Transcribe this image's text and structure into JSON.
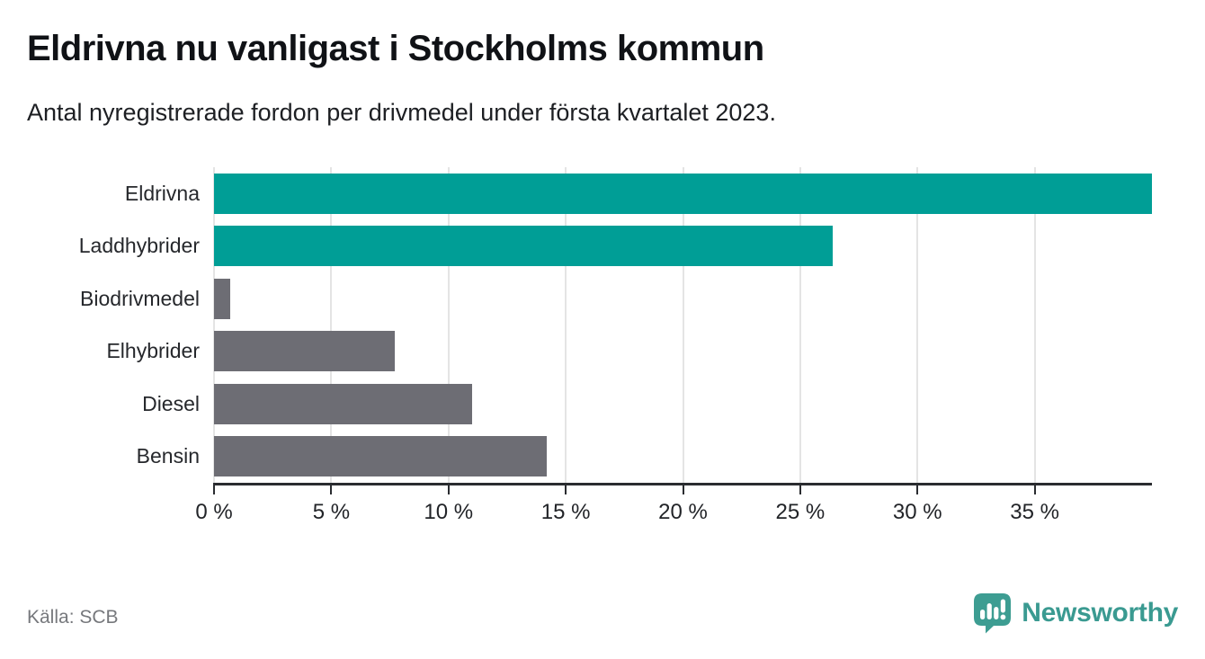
{
  "header": {
    "title": "Eldrivna nu vanligast i Stockholms kommun",
    "subtitle": "Antal nyregistrerade fordon per drivmedel under första kvartalet 2023."
  },
  "chart_data": {
    "type": "bar",
    "orientation": "horizontal",
    "title": "Eldrivna nu vanligast i Stockholms kommun",
    "subtitle": "Antal nyregistrerade fordon per drivmedel under första kvartalet 2023.",
    "categories": [
      "Eldrivna",
      "Laddhybrider",
      "Biodrivmedel",
      "Elhybrider",
      "Diesel",
      "Bensin"
    ],
    "values": [
      40.0,
      26.4,
      0.7,
      7.7,
      11.0,
      14.2
    ],
    "unit": "%",
    "bar_colors": [
      "#009e96",
      "#009e96",
      "#6d6d74",
      "#6d6d74",
      "#6d6d74",
      "#6d6d74"
    ],
    "xlim": [
      0,
      40
    ],
    "x_ticks": [
      0,
      5,
      10,
      15,
      20,
      25,
      30,
      35
    ],
    "x_tick_labels": [
      "0 %",
      "5 %",
      "10 %",
      "15 %",
      "20 %",
      "25 %",
      "30 %",
      "35 %"
    ],
    "grid": "vertical-only",
    "legend": "none",
    "ylabel": "",
    "xlabel": ""
  },
  "footer": {
    "source": "Källa: SCB",
    "brand": "Newsworthy"
  },
  "colors": {
    "accent_teal": "#009e96",
    "neutral_gray": "#6d6d74",
    "grid": "#e4e4e4",
    "axis": "#2a2c30",
    "brand_teal": "#3a9a91",
    "source_gray": "#76787c"
  },
  "icons": {
    "brand_icon": "newsworthy-speech-bubble-bar-chart-icon"
  }
}
